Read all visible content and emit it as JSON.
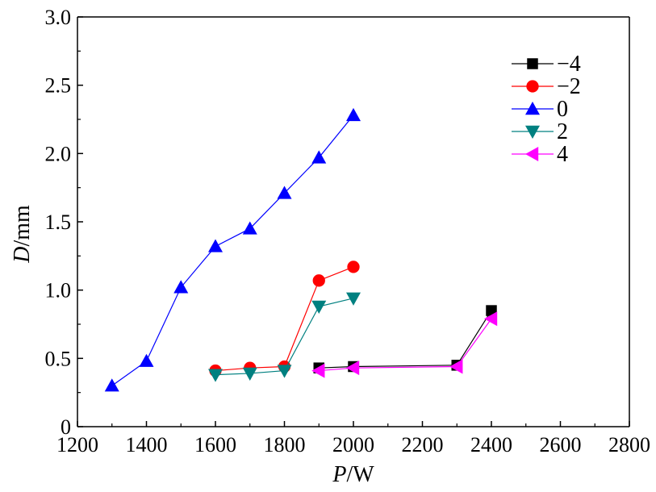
{
  "chart_data": {
    "type": "line",
    "xlabel": {
      "italic": "P",
      "rest": "/W"
    },
    "ylabel": {
      "italic": "D",
      "rest": "/mm"
    },
    "xlim": [
      1200,
      2800
    ],
    "ylim": [
      0,
      3.0
    ],
    "xticks": [
      1200,
      1400,
      1600,
      1800,
      2000,
      2200,
      2400,
      2600,
      2800
    ],
    "xtick_labels": [
      "1200",
      "1400",
      "1600",
      "1800",
      "2000",
      "2200",
      "2400",
      "2600",
      "2800"
    ],
    "yticks": [
      0,
      0.5,
      1.0,
      1.5,
      2.0,
      2.5,
      3.0
    ],
    "ytick_labels": [
      "0",
      "0.5",
      "1.0",
      "1.5",
      "2.0",
      "2.5",
      "3.0"
    ],
    "grid": false,
    "legend_position": "top-right",
    "series": [
      {
        "name": "−4",
        "color": "#000000",
        "marker": "square",
        "x": [
          1900,
          2000,
          2300,
          2400
        ],
        "y": [
          0.43,
          0.44,
          0.45,
          0.85
        ]
      },
      {
        "name": "−2",
        "color": "#ff0000",
        "marker": "circle",
        "x": [
          1600,
          1700,
          1800,
          1900,
          2000
        ],
        "y": [
          0.41,
          0.43,
          0.44,
          1.07,
          1.17
        ]
      },
      {
        "name": "0",
        "color": "#0000ff",
        "marker": "triangle-up",
        "x": [
          1300,
          1400,
          1500,
          1600,
          1700,
          1800,
          1900,
          2000
        ],
        "y": [
          0.3,
          0.48,
          1.02,
          1.32,
          1.45,
          1.71,
          1.97,
          2.28
        ]
      },
      {
        "name": "2",
        "color": "#008080",
        "marker": "triangle-down",
        "x": [
          1600,
          1700,
          1800,
          1900,
          2000
        ],
        "y": [
          0.38,
          0.39,
          0.41,
          0.88,
          0.94
        ]
      },
      {
        "name": "4",
        "color": "#ff00ff",
        "marker": "triangle-left",
        "x": [
          1900,
          2000,
          2300,
          2400
        ],
        "y": [
          0.41,
          0.43,
          0.44,
          0.79
        ]
      }
    ]
  }
}
